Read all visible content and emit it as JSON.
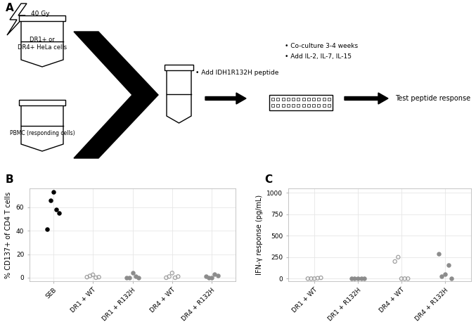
{
  "diagram": {
    "title": "A",
    "irradiation": "40 Gy",
    "stimulator_tube": "DR1+ or\nDR4+ HeLa cells",
    "responder_tube": "PBMC (responding cells)",
    "peptide_step": "• Add IDH1R132H peptide",
    "culture_steps": [
      "• Co-culture 3-4 weeks",
      "• Add IL-2, IL-7, IL-15"
    ],
    "readout": "Test peptide response"
  },
  "chart_data": [
    {
      "type": "strip",
      "title": "B",
      "y_label": "% CD137+ of CD4 T cells",
      "categories": [
        "SEB",
        "DR1 + WT",
        "DR1 + R132H",
        "DR4 + WT",
        "DR4 + R132H"
      ],
      "series": [
        {
          "color": "#000000",
          "marker": "filled_circle",
          "values": [
            [
              41,
              66,
              73,
              58,
              55
            ],
            [],
            [],
            [],
            []
          ]
        },
        {
          "color": "#a0a0a0",
          "marker": "open_circle",
          "values": [
            [],
            [
              0.5,
              1.5,
              2.5,
              0,
              0.5
            ],
            [],
            [
              0,
              1,
              4,
              0,
              1
            ],
            []
          ]
        },
        {
          "color": "#8c8c8c",
          "marker": "filled_circle",
          "values": [
            [],
            [],
            [
              0,
              0,
              4,
              1,
              0
            ],
            [],
            [
              1,
              0,
              0,
              3,
              2
            ]
          ]
        }
      ],
      "ylim": [
        -3,
        76
      ],
      "yticks": [
        0,
        20,
        40,
        60
      ],
      "grid": true
    },
    {
      "type": "strip",
      "title": "C",
      "y_label": "IFN-γ response (pg/mL)",
      "categories": [
        "DR1 + WT",
        "DR1 + R132H",
        "DR4 + WT",
        "DR4 + R132H"
      ],
      "series": [
        {
          "color": "#a0a0a0",
          "marker": "open_circle",
          "values": [
            [
              0,
              0,
              0,
              5,
              10
            ],
            [],
            [
              200,
              250,
              0,
              0,
              0
            ],
            []
          ]
        },
        {
          "color": "#8c8c8c",
          "marker": "filled_circle",
          "values": [
            [],
            [
              0,
              0,
              0,
              0,
              0
            ],
            [],
            [
              290,
              30,
              50,
              160,
              0
            ]
          ]
        }
      ],
      "ylim": [
        -30,
        1050
      ],
      "yticks": [
        0,
        250,
        500,
        750,
        1000
      ],
      "grid": true
    }
  ]
}
